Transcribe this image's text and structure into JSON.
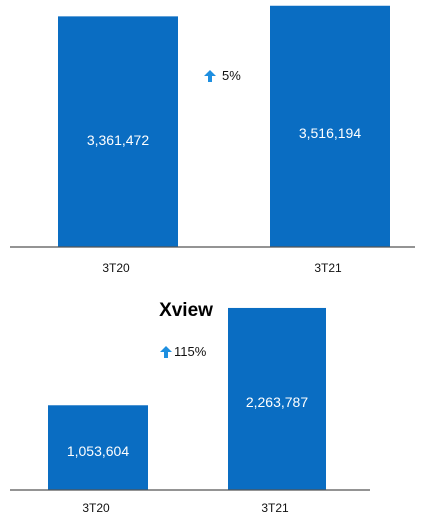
{
  "colors": {
    "bar": "#0a6dc2",
    "arrow": "#1e8fe0",
    "axis": "#555555"
  },
  "chart_data": [
    {
      "type": "bar",
      "title": "",
      "categories": [
        "3T20",
        "3T21"
      ],
      "values": [
        3361472,
        3516194
      ],
      "value_labels": [
        "3,361,472",
        "3,516,194"
      ],
      "annotation": {
        "icon": "arrow-up-icon",
        "text": "5%"
      },
      "ylim": [
        0,
        3600000
      ]
    },
    {
      "type": "bar",
      "title": "Xview",
      "categories": [
        "3T20",
        "3T21"
      ],
      "values": [
        1053604,
        2263787
      ],
      "value_labels": [
        "1,053,604",
        "2,263,787"
      ],
      "annotation": {
        "icon": "arrow-up-icon",
        "text": "115%"
      },
      "ylim": [
        0,
        2400000
      ]
    }
  ]
}
